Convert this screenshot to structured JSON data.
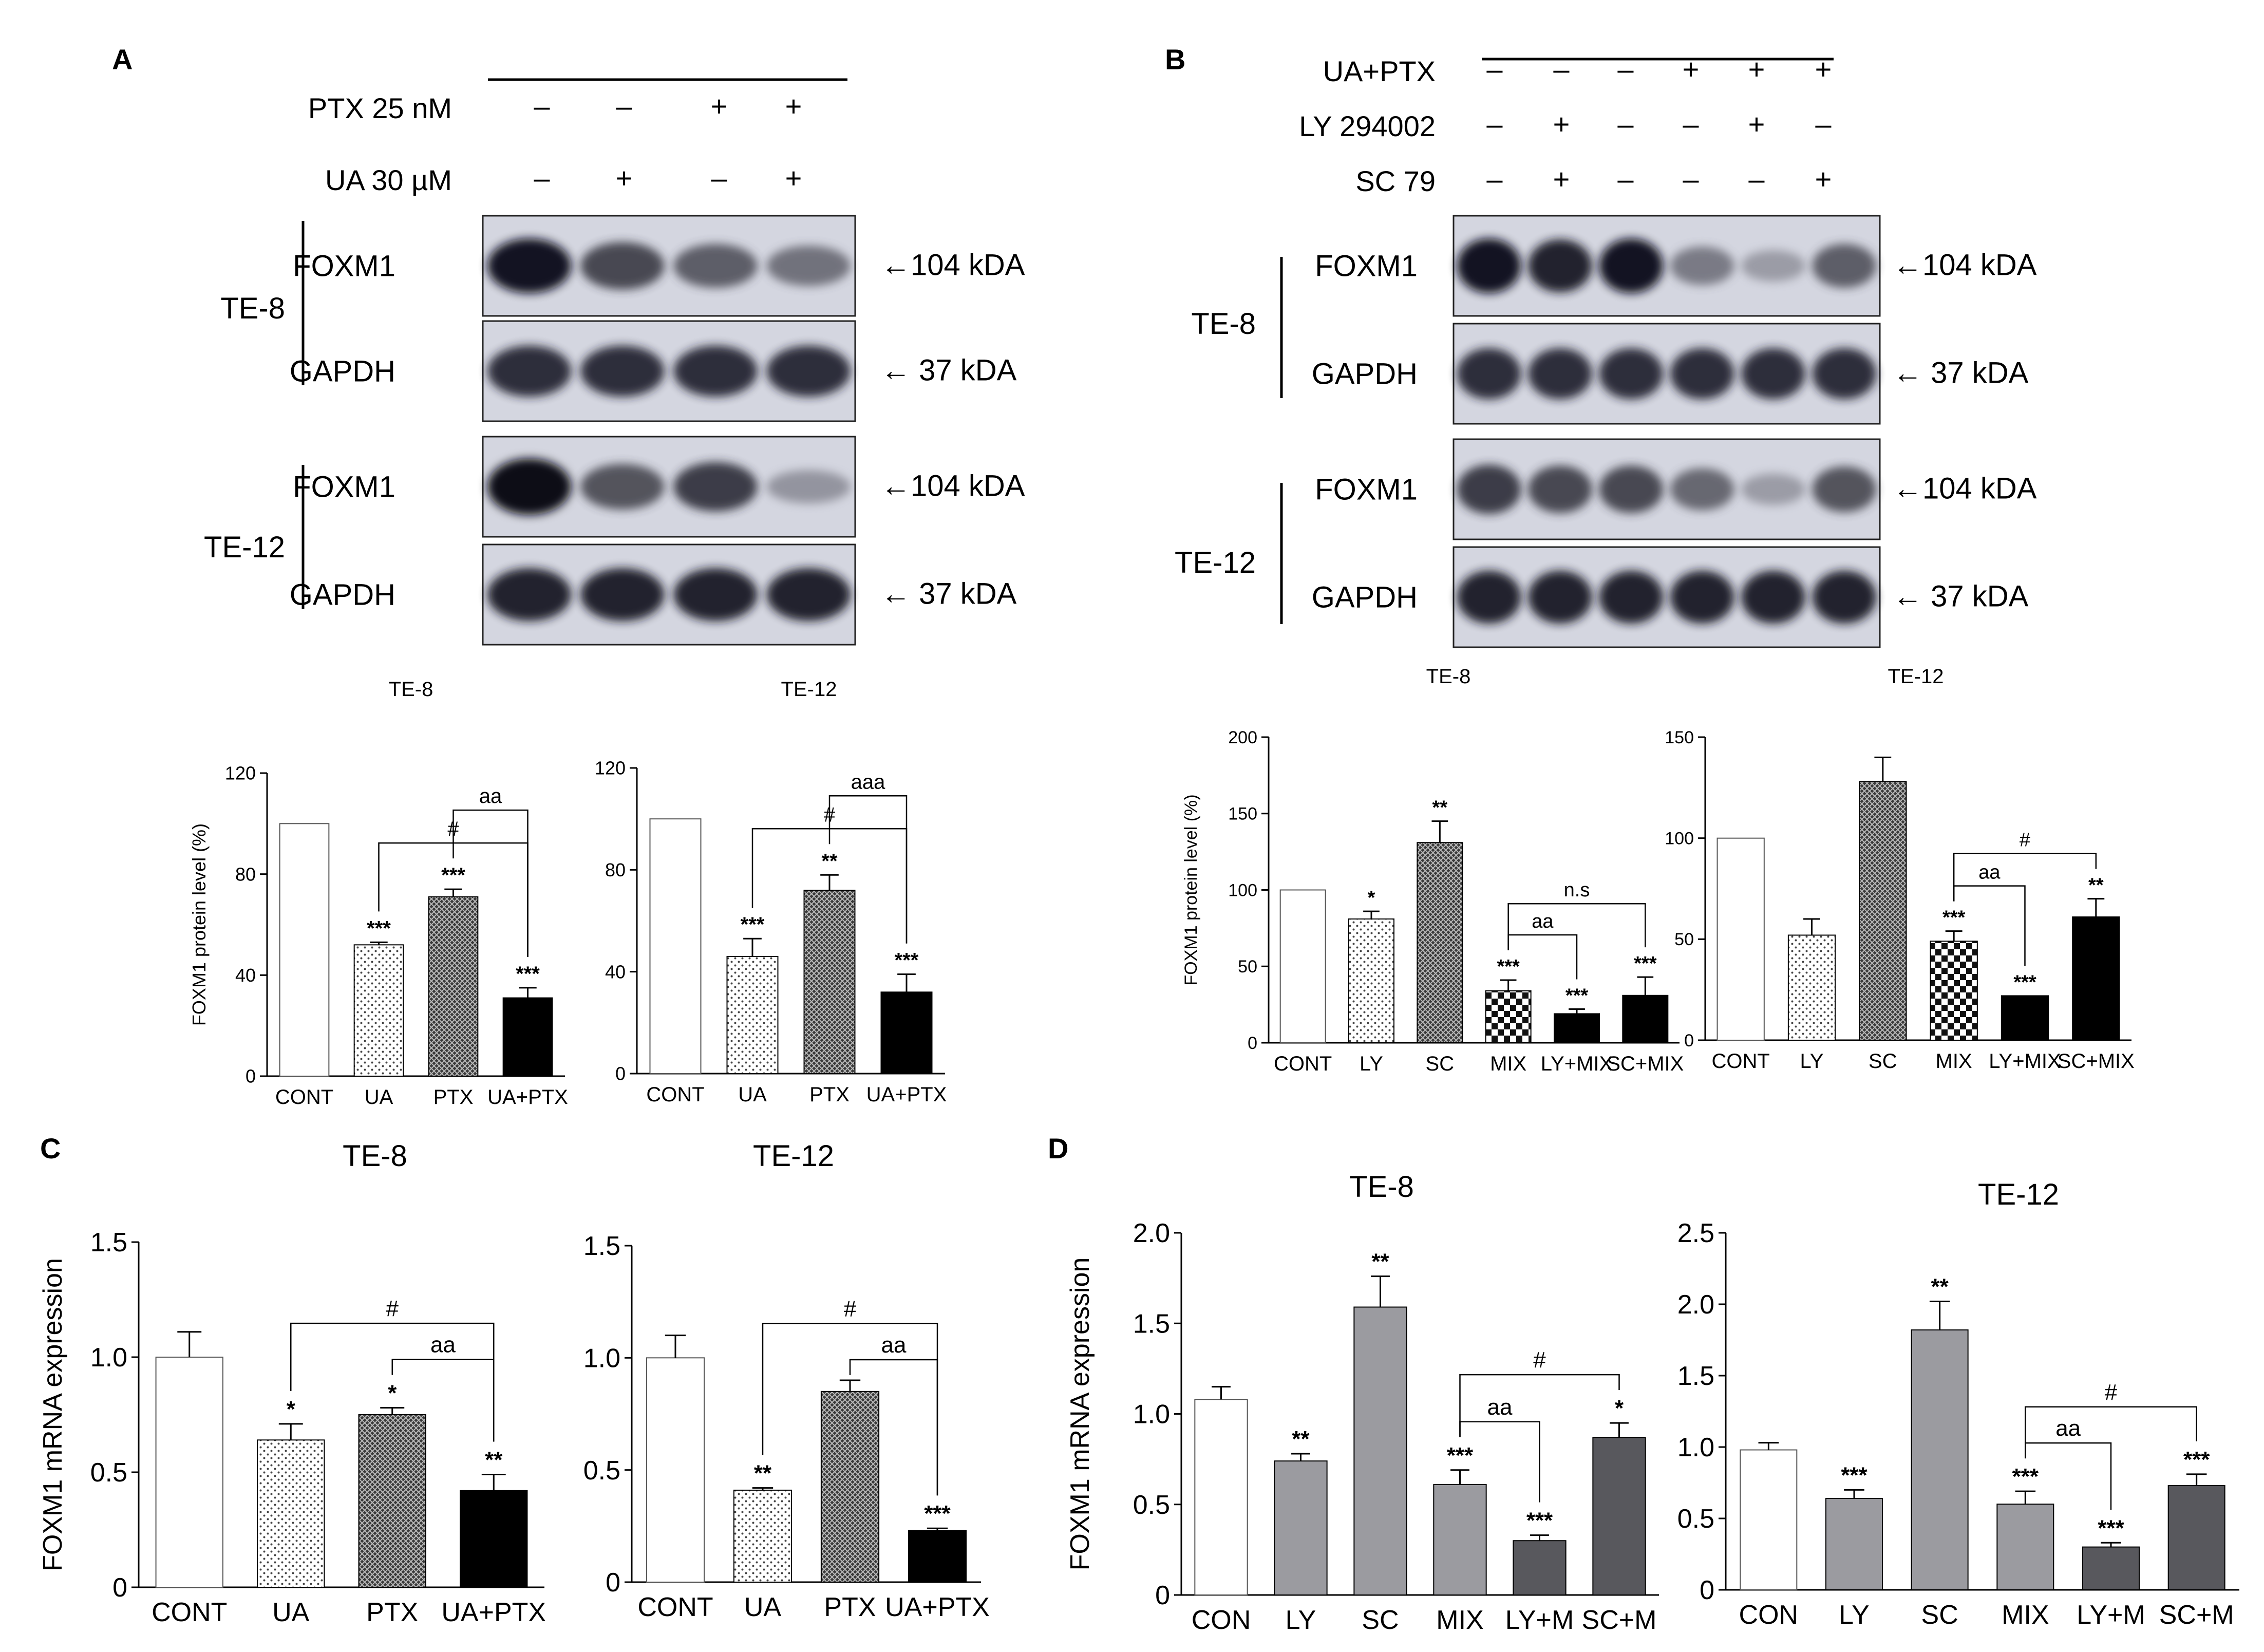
{
  "panel_letters": {
    "A": "A",
    "B": "B",
    "C": "C",
    "D": "D"
  },
  "blot_A": {
    "treatments": [
      {
        "label": "PTX 25 nM",
        "signs": [
          "–",
          "–",
          "+",
          "+"
        ]
      },
      {
        "label": "UA 30 µM",
        "signs": [
          "–",
          "+",
          "–",
          "+"
        ]
      }
    ],
    "cell_groups": [
      {
        "cell": "TE-8",
        "rows": [
          {
            "protein": "FOXM1",
            "size": "←104 kDA",
            "intensity": [
              0.95,
              0.75,
              0.65,
              0.55
            ]
          },
          {
            "protein": "GAPDH",
            "size": "← 37 kDA",
            "intensity": [
              0.85,
              0.85,
              0.85,
              0.85
            ]
          }
        ]
      },
      {
        "cell": "TE-12",
        "rows": [
          {
            "protein": "FOXM1",
            "size": "←104 kDA",
            "intensity": [
              1.0,
              0.7,
              0.8,
              0.35
            ]
          },
          {
            "protein": "GAPDH",
            "size": "← 37 kDA",
            "intensity": [
              0.9,
              0.9,
              0.9,
              0.9
            ]
          }
        ]
      }
    ]
  },
  "blot_B": {
    "treatments": [
      {
        "label": "UA+PTX",
        "signs": [
          "–",
          "–",
          "–",
          "+",
          "+",
          "+"
        ]
      },
      {
        "label": "LY 294002",
        "signs": [
          "–",
          "+",
          "–",
          "–",
          "+",
          "–"
        ]
      },
      {
        "label": "SC 79",
        "signs": [
          "–",
          "+",
          "–",
          "–",
          "–",
          "+"
        ]
      }
    ],
    "cell_groups": [
      {
        "cell": "TE-8",
        "rows": [
          {
            "protein": "FOXM1",
            "size": "←104 kDA",
            "intensity": [
              0.95,
              0.9,
              0.95,
              0.5,
              0.3,
              0.65
            ]
          },
          {
            "protein": "GAPDH",
            "size": "← 37 kDA",
            "intensity": [
              0.85,
              0.85,
              0.85,
              0.85,
              0.85,
              0.85
            ]
          }
        ]
      },
      {
        "cell": "TE-12",
        "rows": [
          {
            "protein": "FOXM1",
            "size": "←104 kDA",
            "intensity": [
              0.8,
              0.75,
              0.75,
              0.6,
              0.3,
              0.7
            ]
          },
          {
            "protein": "GAPDH",
            "size": "← 37 kDA",
            "intensity": [
              0.9,
              0.9,
              0.9,
              0.9,
              0.9,
              0.9
            ]
          }
        ]
      }
    ]
  },
  "chart_data": [
    {
      "id": "A1",
      "type": "bar",
      "title": "TE-8",
      "ylabel": "FOXM1 protein level (%)",
      "categories": [
        "CONT",
        "UA",
        "PTX",
        "UA+PTX"
      ],
      "values": [
        100,
        52,
        71,
        31
      ],
      "errors": [
        0,
        1,
        3,
        4
      ],
      "ylim": [
        0,
        120
      ],
      "yticks": [
        0,
        40,
        80,
        120
      ],
      "patterns": [
        "open",
        "dotted",
        "cross",
        "solid"
      ],
      "stars": [
        "",
        "***",
        "***",
        "***"
      ],
      "brackets": [
        {
          "from": 1,
          "to": 3,
          "label": "#",
          "level": 0
        },
        {
          "from": 2,
          "to": 3,
          "label": "aa",
          "level": 1
        }
      ]
    },
    {
      "id": "A2",
      "type": "bar",
      "title": "TE-12",
      "ylabel": "",
      "categories": [
        "CONT",
        "UA",
        "PTX",
        "UA+PTX"
      ],
      "values": [
        100,
        46,
        72,
        32
      ],
      "errors": [
        0,
        7,
        6,
        7
      ],
      "ylim": [
        0,
        120
      ],
      "yticks": [
        0,
        40,
        80,
        120
      ],
      "patterns": [
        "open",
        "dotted",
        "cross",
        "solid"
      ],
      "stars": [
        "",
        "***",
        "**",
        "***"
      ],
      "brackets": [
        {
          "from": 1,
          "to": 3,
          "label": "#",
          "level": 0
        },
        {
          "from": 2,
          "to": 3,
          "label": "aaa",
          "level": 1
        }
      ]
    },
    {
      "id": "B1",
      "type": "bar",
      "title": "TE-8",
      "ylabel": "FOXM1 protein level (%)",
      "categories": [
        "CONT",
        "LY",
        "SC",
        "MIX",
        "LY+MIX",
        "SC+MIX"
      ],
      "values": [
        100,
        81,
        131,
        34,
        19,
        31
      ],
      "errors": [
        0,
        5,
        14,
        7,
        3,
        12
      ],
      "ylim": [
        0,
        200
      ],
      "yticks": [
        0,
        50,
        100,
        150,
        200
      ],
      "patterns": [
        "open",
        "dotted",
        "cross",
        "checker",
        "solid",
        "solid"
      ],
      "stars": [
        "",
        "*",
        "**",
        "***",
        "***",
        "***"
      ],
      "brackets": [
        {
          "from": 3,
          "to": 4,
          "label": "aa",
          "level": 0
        },
        {
          "from": 3,
          "to": 5,
          "label": "n.s",
          "level": 1
        }
      ]
    },
    {
      "id": "B2",
      "type": "bar",
      "title": "TE-12",
      "ylabel": "",
      "categories": [
        "CONT",
        "LY",
        "SC",
        "MIX",
        "LY+MIX",
        "SC+MIX"
      ],
      "values": [
        100,
        52,
        128,
        49,
        22,
        61
      ],
      "errors": [
        0,
        8,
        12,
        5,
        0,
        9
      ],
      "ylim": [
        0,
        150
      ],
      "yticks": [
        0,
        50,
        100,
        150
      ],
      "patterns": [
        "open",
        "dotted",
        "cross",
        "checker",
        "solid",
        "solid"
      ],
      "stars": [
        "",
        "",
        "",
        "***",
        "***",
        "**"
      ],
      "brackets": [
        {
          "from": 3,
          "to": 4,
          "label": "aa",
          "level": 0
        },
        {
          "from": 3,
          "to": 5,
          "label": "#",
          "level": 1
        }
      ]
    },
    {
      "id": "C1",
      "type": "bar",
      "title": "TE-8",
      "ylabel": "FOXM1 mRNA expression",
      "categories": [
        "CONT",
        "UA",
        "PTX",
        "UA+PTX"
      ],
      "values": [
        1.0,
        0.64,
        0.75,
        0.42
      ],
      "errors": [
        0.11,
        0.07,
        0.03,
        0.07
      ],
      "ylim": [
        0,
        1.5
      ],
      "yticks": [
        0,
        0.5,
        1.0,
        1.5
      ],
      "patterns": [
        "open",
        "dotted",
        "cross",
        "solid"
      ],
      "stars": [
        "",
        "*",
        "*",
        "**"
      ],
      "brackets": [
        {
          "from": 1,
          "to": 3,
          "label": "#",
          "level": 1
        },
        {
          "from": 2,
          "to": 3,
          "label": "aa",
          "level": 0
        }
      ]
    },
    {
      "id": "C2",
      "type": "bar",
      "title": "TE-12",
      "ylabel": "",
      "categories": [
        "CONT",
        "UA",
        "PTX",
        "UA+PTX"
      ],
      "values": [
        1.0,
        0.41,
        0.85,
        0.23
      ],
      "errors": [
        0.1,
        0.01,
        0.05,
        0.01
      ],
      "ylim": [
        0,
        1.5
      ],
      "yticks": [
        0,
        0.5,
        1.0,
        1.5
      ],
      "patterns": [
        "open",
        "dotted",
        "cross",
        "solid"
      ],
      "stars": [
        "",
        "**",
        "",
        "***"
      ],
      "brackets": [
        {
          "from": 1,
          "to": 3,
          "label": "#",
          "level": 1
        },
        {
          "from": 2,
          "to": 3,
          "label": "aa",
          "level": 0
        }
      ]
    },
    {
      "id": "D1",
      "type": "bar",
      "title": "TE-8",
      "ylabel": "FOXM1 mRNA expression",
      "categories": [
        "CON",
        "LY",
        "SC",
        "MIX",
        "LY+M",
        "SC+M"
      ],
      "values": [
        1.08,
        0.74,
        1.59,
        0.61,
        0.3,
        0.87
      ],
      "errors": [
        0.07,
        0.04,
        0.17,
        0.08,
        0.03,
        0.08
      ],
      "ylim": [
        0,
        2.0
      ],
      "yticks": [
        0,
        0.5,
        1.0,
        1.5,
        2.0
      ],
      "patterns": [
        "open",
        "grey",
        "grey",
        "grey",
        "dark",
        "dark"
      ],
      "stars": [
        "",
        "**",
        "**",
        "***",
        "***",
        "*"
      ],
      "brackets": [
        {
          "from": 3,
          "to": 4,
          "label": "aa",
          "level": 0
        },
        {
          "from": 3,
          "to": 5,
          "label": "#",
          "level": 1
        }
      ]
    },
    {
      "id": "D2",
      "type": "bar",
      "title": "TE-12",
      "ylabel": "",
      "categories": [
        "CON",
        "LY",
        "SC",
        "MIX",
        "LY+M",
        "SC+M"
      ],
      "values": [
        0.98,
        0.64,
        1.82,
        0.6,
        0.3,
        0.73
      ],
      "errors": [
        0.05,
        0.06,
        0.2,
        0.09,
        0.03,
        0.08
      ],
      "ylim": [
        0,
        2.5
      ],
      "yticks": [
        0,
        0.5,
        1.0,
        1.5,
        2.0,
        2.5
      ],
      "patterns": [
        "open",
        "grey",
        "grey",
        "grey",
        "dark",
        "dark"
      ],
      "stars": [
        "",
        "***",
        "**",
        "***",
        "***",
        "***"
      ],
      "brackets": [
        {
          "from": 3,
          "to": 4,
          "label": "aa",
          "level": 0
        },
        {
          "from": 3,
          "to": 5,
          "label": "#",
          "level": 1
        }
      ]
    }
  ]
}
